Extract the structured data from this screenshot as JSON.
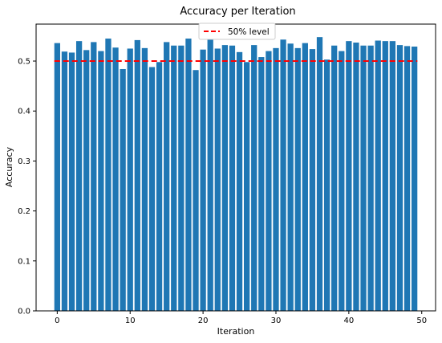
{
  "chart_data": {
    "type": "bar",
    "title": "Accuracy per Iteration",
    "xlabel": "Iteration",
    "ylabel": "Accuracy",
    "xlim": [
      -2.9,
      51.9
    ],
    "ylim": [
      0,
      0.574
    ],
    "xticks": [
      0,
      10,
      20,
      30,
      40,
      50
    ],
    "yticks": [
      0.0,
      0.1,
      0.2,
      0.3,
      0.4,
      0.5
    ],
    "ytick_labels": [
      "0.0",
      "0.1",
      "0.2",
      "0.3",
      "0.4",
      "0.5"
    ],
    "grid": false,
    "bar_color": "#1f77b4",
    "x": [
      0,
      1,
      2,
      3,
      4,
      5,
      6,
      7,
      8,
      9,
      10,
      11,
      12,
      13,
      14,
      15,
      16,
      17,
      18,
      19,
      20,
      21,
      22,
      23,
      24,
      25,
      26,
      27,
      28,
      29,
      30,
      31,
      32,
      33,
      34,
      35,
      36,
      37,
      38,
      39,
      40,
      41,
      42,
      43,
      44,
      45,
      46,
      47,
      48,
      49
    ],
    "values": [
      0.536,
      0.519,
      0.517,
      0.54,
      0.522,
      0.538,
      0.52,
      0.545,
      0.527,
      0.484,
      0.525,
      0.542,
      0.526,
      0.488,
      0.498,
      0.538,
      0.531,
      0.531,
      0.545,
      0.482,
      0.523,
      0.544,
      0.525,
      0.532,
      0.531,
      0.518,
      0.498,
      0.532,
      0.508,
      0.52,
      0.526,
      0.543,
      0.535,
      0.526,
      0.536,
      0.524,
      0.548,
      0.503,
      0.531,
      0.52,
      0.54,
      0.537,
      0.531,
      0.531,
      0.541,
      0.54,
      0.54,
      0.532,
      0.53,
      0.529
    ],
    "reference_line": {
      "value": 0.5,
      "label": "50% level",
      "color": "#ff0000",
      "style": "dashed"
    },
    "legend_position": "upper-center"
  }
}
